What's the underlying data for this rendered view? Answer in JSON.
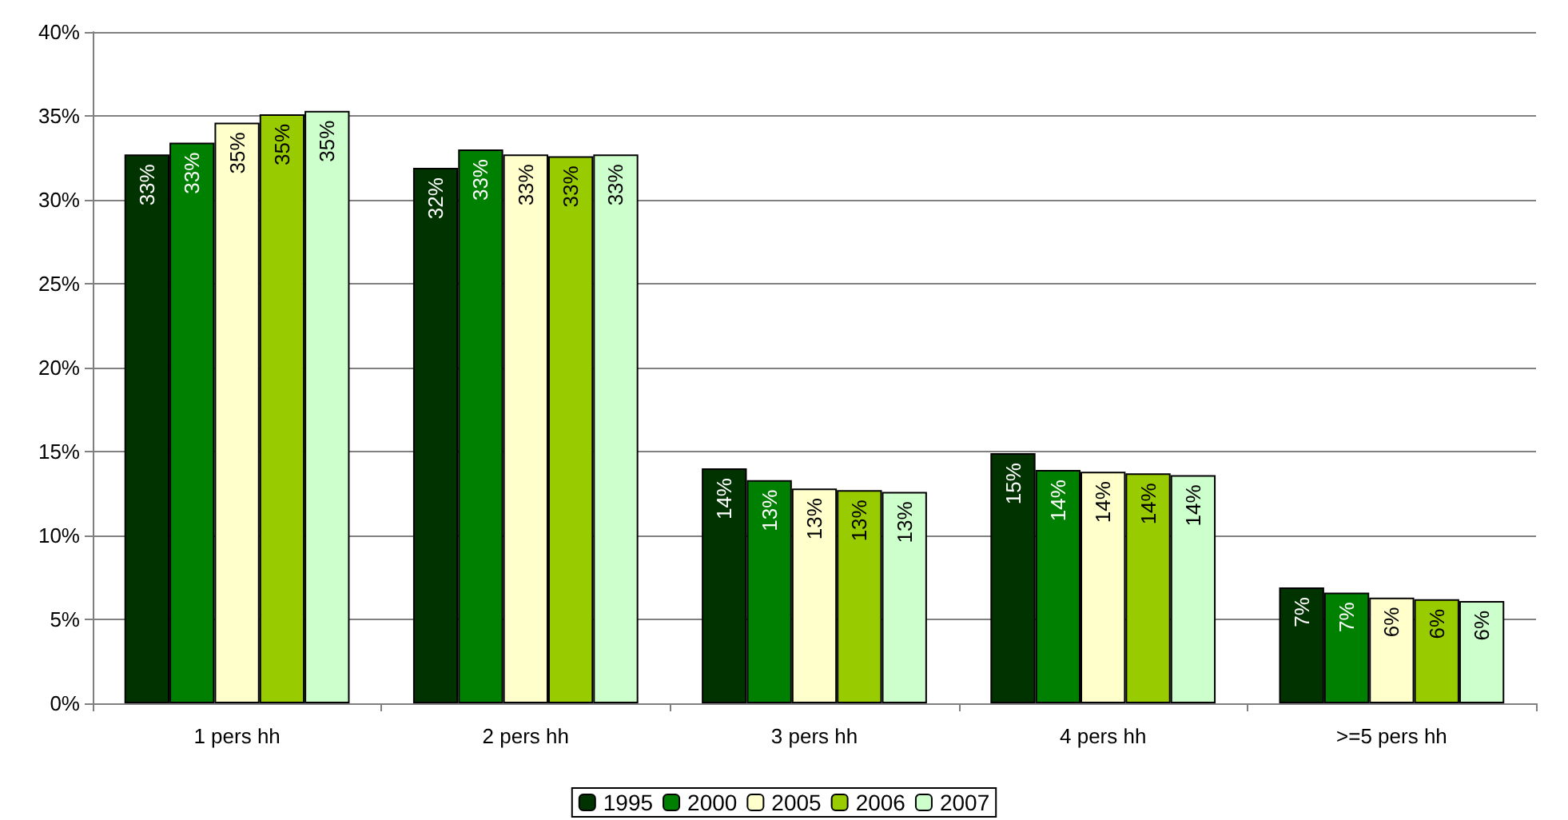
{
  "chart_data": {
    "type": "bar",
    "categories": [
      "1 pers hh",
      "2 pers hh",
      "3 pers hh",
      "4 pers hh",
      ">=5 pers hh"
    ],
    "series": [
      {
        "name": "1995",
        "color": "#003300",
        "values": [
          32.7,
          31.9,
          14.0,
          14.9,
          6.9
        ],
        "value_labels": [
          "33%",
          "32%",
          "14%",
          "15%",
          "7%"
        ]
      },
      {
        "name": "2000",
        "color": "#008000",
        "values": [
          33.4,
          33.0,
          13.3,
          13.9,
          6.6
        ],
        "value_labels": [
          "33%",
          "33%",
          "13%",
          "14%",
          "7%"
        ]
      },
      {
        "name": "2005",
        "color": "#ffffcc",
        "values": [
          34.6,
          32.7,
          12.8,
          13.8,
          6.3
        ],
        "value_labels": [
          "35%",
          "33%",
          "13%",
          "14%",
          "6%"
        ]
      },
      {
        "name": "2006",
        "color": "#99cc00",
        "values": [
          35.1,
          32.6,
          12.7,
          13.7,
          6.2
        ],
        "value_labels": [
          "35%",
          "33%",
          "13%",
          "14%",
          "6%"
        ]
      },
      {
        "name": "2007",
        "color": "#ccffcc",
        "values": [
          35.3,
          32.7,
          12.6,
          13.6,
          6.1
        ],
        "value_labels": [
          "35%",
          "33%",
          "13%",
          "14%",
          "6%"
        ]
      }
    ],
    "ylim": [
      0,
      40
    ],
    "yticks": [
      {
        "value": 0,
        "label": "0%"
      },
      {
        "value": 5,
        "label": "5%"
      },
      {
        "value": 10,
        "label": "10%"
      },
      {
        "value": 15,
        "label": "15%"
      },
      {
        "value": 20,
        "label": "20%"
      },
      {
        "value": 25,
        "label": "25%"
      },
      {
        "value": 30,
        "label": "30%"
      },
      {
        "value": 35,
        "label": "35%"
      },
      {
        "value": 40,
        "label": "40%"
      }
    ],
    "grid": "y",
    "legend": "bottom"
  }
}
